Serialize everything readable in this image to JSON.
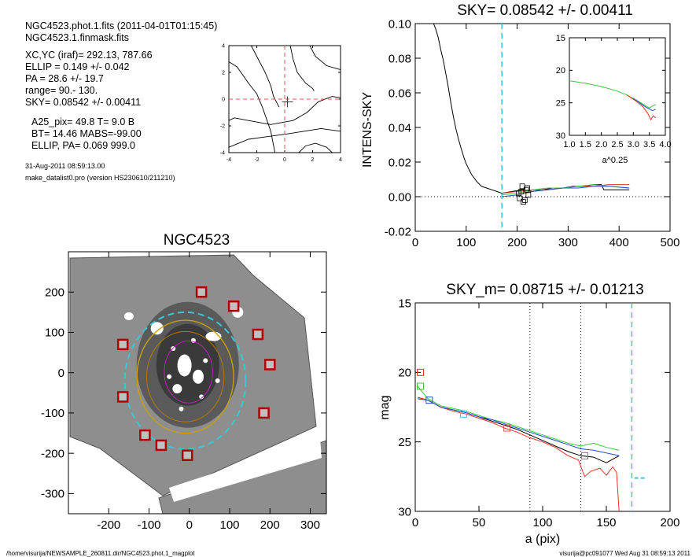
{
  "header_text": {
    "lines1": [
      "NGC4523.phot.1.fits  (2011-04-01T01:15:45)",
      "NGC4523.1.finmask.fits"
    ],
    "lines2": [
      "XC,YC (iraf)=   292.13, 787.66",
      "ELLIP = 0.149 +/- 0.042",
      "PA    =  28.6 +/-  19.7",
      "range=   90.-  130.",
      "SKY= 0.08542 +/- 0.00411"
    ],
    "lines3": [
      "A25_pix= 49.8   T= 9.0  B",
      "BT=  14.46   MABS=-99.00",
      "ELLIP, PA= 0.069   999.0"
    ],
    "lines4": [
      "31-Aug-2011 08:59:13.00",
      "make_datalist0.pro (version HS230610/211210)"
    ]
  },
  "footer": {
    "left": "/home/visurija/NEWSAMPLE_260811.dir/NGC4523.phot.1_magplot",
    "right": "visurija@pc091077  Wed Aug 31 08:59:13 2011"
  },
  "colors": {
    "cyan": "#37c8d8",
    "red": "#e8322a",
    "green": "#38c838",
    "blue": "#2050d0",
    "pink": "#e35050",
    "gray": "#777777",
    "bg": "#ffffff"
  },
  "chart_data": [
    {
      "id": "centroid",
      "type": "line",
      "title": "",
      "xlim": [
        -4,
        4
      ],
      "ylim": [
        -4,
        4
      ],
      "xticks": [
        -4,
        -2,
        0,
        2,
        4
      ],
      "yticks": [
        -4,
        -2,
        0,
        2,
        4
      ],
      "crosshair": [
        0,
        0
      ],
      "marker": [
        0.2,
        -0.2
      ],
      "contours": [
        [
          [
            -4.0,
            2.8
          ],
          [
            -3.4,
            2.4
          ],
          [
            -2.6,
            1.2
          ],
          [
            -2.0,
            0.4
          ],
          [
            -1.6,
            -0.6
          ],
          [
            -1.0,
            -2.4
          ],
          [
            -0.7,
            -4.0
          ]
        ],
        [
          [
            -2.4,
            4.0
          ],
          [
            -1.4,
            2.0
          ],
          [
            -1.0,
            1.0
          ],
          [
            -0.8,
            0.2
          ],
          [
            -0.4,
            -0.6
          ]
        ],
        [
          [
            0.4,
            4.0
          ],
          [
            0.6,
            3.0
          ],
          [
            0.9,
            2.0
          ],
          [
            1.5,
            1.2
          ],
          [
            2.0,
            0.8
          ],
          [
            2.1,
            0.6
          ]
        ],
        [
          [
            1.8,
            4.0
          ],
          [
            2.2,
            3.2
          ],
          [
            3.0,
            2.5
          ],
          [
            4.0,
            2.2
          ]
        ],
        [
          [
            -4.0,
            -1.6
          ],
          [
            -3.6,
            -1.4
          ],
          [
            -2.6,
            -1.6
          ],
          [
            -1.0,
            -1.9
          ],
          [
            0.6,
            -1.6
          ],
          [
            1.6,
            -1.0
          ],
          [
            2.4,
            -0.2
          ],
          [
            3.4,
            0.2
          ],
          [
            4.0,
            0.1
          ]
        ],
        [
          [
            -4.0,
            -3.6
          ],
          [
            -2.6,
            -3.0
          ],
          [
            -1.2,
            -2.8
          ],
          [
            0.2,
            -2.6
          ],
          [
            1.4,
            -2.4
          ],
          [
            2.6,
            -2.2
          ],
          [
            4.0,
            -2.4
          ]
        ],
        [
          [
            1.0,
            -4.0
          ],
          [
            1.5,
            -3.5
          ],
          [
            2.2,
            -3.3
          ],
          [
            3.0,
            -3.6
          ],
          [
            3.4,
            -4.0
          ]
        ]
      ]
    },
    {
      "id": "sky-profile",
      "type": "line",
      "title": "SKY= 0.08542 +/- 0.00411",
      "xlabel": "",
      "ylabel": "INTENS-SKY",
      "xlim": [
        0,
        500
      ],
      "ylim": [
        -0.02,
        0.1
      ],
      "xticks": [
        0,
        100,
        200,
        300,
        400,
        500
      ],
      "yticks": [
        -0.02,
        0.0,
        0.02,
        0.04,
        0.06,
        0.08,
        0.1
      ],
      "ytick_labels": [
        "-0.02",
        "0.00",
        "0.02",
        "0.04",
        "0.06",
        "0.08",
        "0.10"
      ],
      "sky_line_x": 170,
      "zero_line": 0,
      "series": [
        {
          "color": "black",
          "points": [
            [
              36,
              0.1
            ],
            [
              40,
              0.097
            ],
            [
              45,
              0.092
            ],
            [
              50,
              0.085
            ],
            [
              55,
              0.079
            ],
            [
              60,
              0.071
            ],
            [
              65,
              0.063
            ],
            [
              70,
              0.054
            ],
            [
              75,
              0.046
            ],
            [
              80,
              0.039
            ],
            [
              85,
              0.033
            ],
            [
              90,
              0.028
            ],
            [
              95,
              0.023
            ],
            [
              100,
              0.019
            ],
            [
              110,
              0.013
            ],
            [
              120,
              0.009
            ],
            [
              130,
              0.006
            ],
            [
              140,
              0.005
            ],
            [
              150,
              0.004
            ],
            [
              160,
              0.003
            ],
            [
              170,
              0.002
            ],
            [
              190,
              0.003
            ],
            [
              210,
              0.004
            ],
            [
              230,
              0.003
            ],
            [
              250,
              0.004
            ],
            [
              270,
              0.005
            ],
            [
              290,
              0.005
            ],
            [
              310,
              0.006
            ],
            [
              330,
              0.006
            ],
            [
              350,
              0.007
            ],
            [
              365,
              0.007
            ],
            [
              370,
              0.004
            ],
            [
              420,
              0.004
            ]
          ]
        },
        {
          "color": "red",
          "points": [
            [
              170,
              0.002
            ],
            [
              200,
              0.003
            ],
            [
              230,
              0.004
            ],
            [
              260,
              0.004
            ],
            [
              290,
              0.005
            ],
            [
              320,
              0.006
            ],
            [
              350,
              0.006
            ],
            [
              380,
              0.007
            ],
            [
              420,
              0.007
            ]
          ]
        },
        {
          "color": "green",
          "points": [
            [
              170,
              0.001
            ],
            [
              200,
              0.002
            ],
            [
              230,
              0.004
            ],
            [
              260,
              0.005
            ],
            [
              290,
              0.005
            ],
            [
              320,
              0.006
            ],
            [
              350,
              0.007
            ],
            [
              380,
              0.006
            ],
            [
              420,
              0.005
            ]
          ]
        },
        {
          "color": "blue",
          "points": [
            [
              170,
              0.0
            ],
            [
              200,
              0.001
            ],
            [
              230,
              0.003
            ],
            [
              260,
              0.004
            ],
            [
              290,
              0.005
            ],
            [
              320,
              0.005
            ],
            [
              350,
              0.006
            ],
            [
              380,
              0.006
            ],
            [
              420,
              0.005
            ]
          ]
        }
      ],
      "squares": [
        [
          203,
          0.002
        ],
        [
          210,
          0.006
        ],
        [
          215,
          -0.002
        ],
        [
          218,
          0.004
        ],
        [
          222,
          0.001
        ],
        [
          205,
          -0.001
        ],
        [
          212,
          -0.003
        ],
        [
          220,
          0.005
        ],
        [
          208,
          0.003
        ]
      ],
      "inset": {
        "xlabel": "a^0.25",
        "xlim": [
          1.0,
          4.0
        ],
        "ylim": [
          15,
          30
        ],
        "xticks": [
          1.0,
          1.5,
          2.0,
          2.5,
          3.0,
          3.5,
          4.0
        ],
        "xtick_labels": [
          "1.0",
          "1.5",
          "2.0",
          "2.5",
          "3.0",
          "3.5",
          "4.0"
        ],
        "yticks": [
          15,
          20,
          25,
          30
        ],
        "series": [
          {
            "color": "green",
            "points": [
              [
                1.0,
                21.6
              ],
              [
                1.5,
                22.0
              ],
              [
                2.0,
                22.5
              ],
              [
                2.5,
                23.2
              ],
              [
                2.8,
                23.8
              ],
              [
                3.1,
                24.6
              ],
              [
                3.3,
                25.2
              ],
              [
                3.5,
                25.8
              ],
              [
                3.6,
                25.5
              ],
              [
                3.7,
                25.3
              ]
            ]
          },
          {
            "color": "red",
            "points": [
              [
                2.8,
                23.8
              ],
              [
                3.1,
                24.8
              ],
              [
                3.3,
                25.6
              ],
              [
                3.45,
                26.6
              ],
              [
                3.55,
                27.6
              ],
              [
                3.62,
                27.0
              ],
              [
                3.7,
                27.3
              ]
            ]
          },
          {
            "color": "blue",
            "points": [
              [
                3.0,
                24.3
              ],
              [
                3.2,
                25.0
              ],
              [
                3.4,
                25.7
              ],
              [
                3.6,
                26.2
              ],
              [
                3.7,
                26.0
              ]
            ]
          }
        ]
      }
    },
    {
      "id": "galaxy-image",
      "type": "scatter",
      "title": "NGC4523",
      "xlim": [
        -300,
        340
      ],
      "ylim": [
        -350,
        300
      ],
      "xticks": [
        -200,
        -100,
        0,
        100,
        200,
        300
      ],
      "yticks": [
        -300,
        -200,
        -100,
        0,
        100,
        200
      ],
      "ellipse_sky": {
        "cx": -10,
        "cy": -20,
        "rx": 150,
        "ry": 170
      },
      "ellipse_outer": {
        "cx": -10,
        "cy": -10,
        "rx": 120,
        "ry": 140
      },
      "star_markers": [
        [
          30,
          200
        ],
        [
          110,
          165
        ],
        [
          170,
          95
        ],
        [
          200,
          20
        ],
        [
          185,
          -100
        ],
        [
          -165,
          70
        ],
        [
          -165,
          -60
        ],
        [
          -110,
          -155
        ],
        [
          -70,
          -180
        ],
        [
          -5,
          -205
        ]
      ]
    },
    {
      "id": "mag-profile",
      "type": "line",
      "title": "SKY_m=  0.08715 +/- 0.01213",
      "xlabel": "a (pix)",
      "ylabel": "mag",
      "xlim": [
        0,
        200
      ],
      "ylim": [
        15,
        30
      ],
      "xticks": [
        0,
        50,
        100,
        150,
        200
      ],
      "yticks": [
        15,
        20,
        25,
        30
      ],
      "vlines_dotted": [
        90,
        130
      ],
      "sky_line_x": 170,
      "sky_segment": {
        "x": [
          172,
          182
        ],
        "y": 27.6
      },
      "series": [
        {
          "color": "black",
          "points": [
            [
              2,
              21.8
            ],
            [
              10,
              22.0
            ],
            [
              20,
              22.5
            ],
            [
              30,
              22.7
            ],
            [
              40,
              22.9
            ],
            [
              50,
              23.2
            ],
            [
              60,
              23.5
            ],
            [
              70,
              23.8
            ],
            [
              80,
              24.1
            ],
            [
              90,
              24.5
            ],
            [
              100,
              24.9
            ],
            [
              110,
              25.3
            ],
            [
              120,
              25.7
            ],
            [
              130,
              26.0
            ],
            [
              140,
              26.1
            ],
            [
              150,
              26.5
            ],
            [
              160,
              26.0
            ]
          ]
        },
        {
          "color": "red",
          "points": [
            [
              2,
              21.8
            ],
            [
              10,
              22.0
            ],
            [
              20,
              22.5
            ],
            [
              30,
              22.8
            ],
            [
              40,
              23.0
            ],
            [
              50,
              23.3
            ],
            [
              60,
              23.6
            ],
            [
              70,
              24.0
            ],
            [
              80,
              24.3
            ],
            [
              90,
              24.7
            ],
            [
              100,
              25.0
            ],
            [
              110,
              25.4
            ],
            [
              120,
              26.0
            ],
            [
              128,
              26.3
            ],
            [
              133,
              27.5
            ],
            [
              138,
              27.1
            ],
            [
              145,
              26.9
            ],
            [
              150,
              27.4
            ],
            [
              155,
              26.8
            ],
            [
              158,
              27.2
            ],
            [
              160,
              30.0
            ]
          ]
        },
        {
          "color": "green",
          "points": [
            [
              2,
              21.0
            ],
            [
              10,
              21.9
            ],
            [
              20,
              22.4
            ],
            [
              30,
              22.6
            ],
            [
              40,
              22.8
            ],
            [
              50,
              23.1
            ],
            [
              60,
              23.4
            ],
            [
              70,
              23.6
            ],
            [
              80,
              23.9
            ],
            [
              90,
              24.2
            ],
            [
              100,
              24.5
            ],
            [
              110,
              24.8
            ],
            [
              120,
              25.1
            ],
            [
              130,
              25.3
            ],
            [
              140,
              25.1
            ],
            [
              150,
              25.4
            ],
            [
              160,
              25.6
            ]
          ]
        },
        {
          "color": "blue",
          "points": [
            [
              2,
              21.9
            ],
            [
              10,
              22.0
            ],
            [
              20,
              22.5
            ],
            [
              30,
              22.7
            ],
            [
              40,
              22.9
            ],
            [
              50,
              23.2
            ],
            [
              60,
              23.4
            ],
            [
              70,
              23.7
            ],
            [
              80,
              24.0
            ],
            [
              90,
              24.3
            ],
            [
              100,
              24.6
            ],
            [
              110,
              24.9
            ],
            [
              120,
              25.2
            ],
            [
              130,
              25.5
            ],
            [
              140,
              25.6
            ],
            [
              150,
              25.8
            ],
            [
              160,
              26.0
            ]
          ]
        }
      ],
      "markers": [
        {
          "color": "red",
          "x": 4,
          "y": 20.0
        },
        {
          "color": "green",
          "x": 4,
          "y": 21.0
        },
        {
          "color": "blue",
          "x": 11,
          "y": 22.0
        },
        {
          "color": "cyan",
          "x": 38,
          "y": 23.0
        },
        {
          "color": "pink",
          "x": 72,
          "y": 24.0
        },
        {
          "color": "gray",
          "x": 133,
          "y": 26.0
        }
      ]
    }
  ]
}
